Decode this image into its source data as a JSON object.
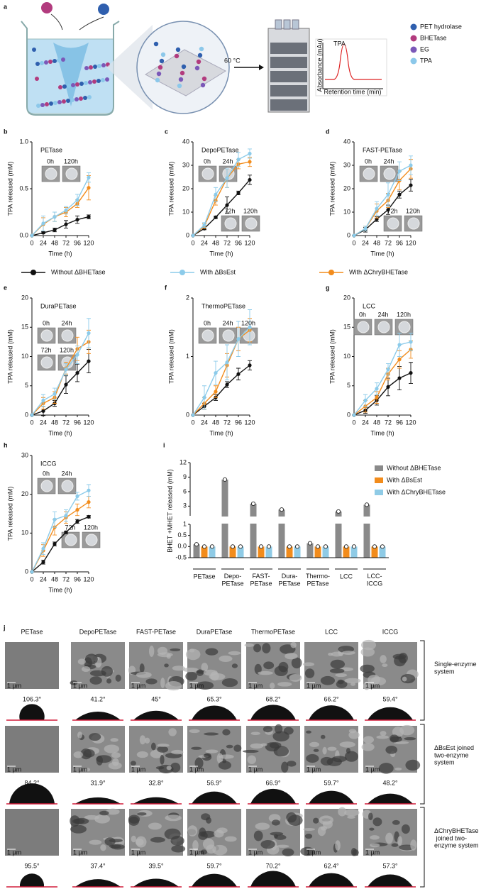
{
  "panel_a": {
    "label": "a",
    "temperature": "60 °C",
    "peak": "TPA",
    "y_axis": "Absorbance (mAu)",
    "x_axis": "Retention time (min)",
    "legend": [
      "PET hydrolase",
      "BHETase",
      "EG",
      "TPA"
    ],
    "legend_colors": [
      "#2f5fae",
      "#b23b7e",
      "#7b58b8",
      "#8cc8ea"
    ]
  },
  "legend": [
    {
      "name": "Without ΔBHETase",
      "color": "#111111"
    },
    {
      "name": "With ΔBsEst",
      "color": "#8ccbea"
    },
    {
      "name": "With ΔChryBHETase",
      "color": "#f28c1c"
    }
  ],
  "chart_data": [
    {
      "type": "line",
      "label": "b",
      "title": "PETase",
      "x_label": "Time (h)",
      "y_label": "TPA released (mM)",
      "x": [
        0,
        24,
        48,
        72,
        96,
        120
      ],
      "xlim": [
        0,
        120
      ],
      "xticks": [
        0,
        24,
        48,
        72,
        96,
        120
      ],
      "ylim": [
        0,
        1
      ],
      "yticks": [
        {
          "value": 0,
          "label": "0.0"
        },
        0.5,
        {
          "value": 1,
          "label": "1.0"
        }
      ],
      "insets": [
        [
          "0h",
          "120h"
        ]
      ],
      "series": [
        {
          "values": [
            0,
            0.03,
            0.06,
            0.12,
            0.17,
            0.2
          ],
          "errors": [
            null,
            0.01,
            0.02,
            0.04,
            0.04,
            0.02
          ]
        },
        {
          "values": [
            0,
            0.13,
            0.2,
            0.27,
            0.38,
            0.62
          ],
          "errors": [
            null,
            0.08,
            0.05,
            0.04,
            0.06,
            0.05
          ]
        },
        {
          "values": [
            0,
            0.12,
            0.2,
            0.25,
            0.34,
            0.51
          ],
          "errors": [
            null,
            0.07,
            0.05,
            0.05,
            0.04,
            0.13
          ]
        }
      ]
    },
    {
      "type": "line",
      "label": "c",
      "title": "DepoPETase",
      "x_label": "Time (h)",
      "y_label": "TPA released (mM)",
      "x": [
        0,
        24,
        48,
        72,
        96,
        120
      ],
      "xlim": [
        0,
        120
      ],
      "xticks": [
        0,
        24,
        48,
        72,
        96,
        120
      ],
      "ylim": [
        0,
        40
      ],
      "yticks": [
        0,
        10,
        20,
        30,
        40
      ],
      "insets": [
        [
          "0h",
          "24h"
        ],
        [
          "72h",
          "120h"
        ]
      ],
      "series": [
        {
          "values": [
            0,
            3,
            7.8,
            13,
            18.2,
            23.8
          ],
          "errors": [
            null,
            0.5,
            0.5,
            3.5,
            0.8,
            2
          ]
        },
        {
          "values": [
            0,
            4.5,
            17.5,
            24.5,
            32.5,
            35
          ],
          "errors": [
            null,
            1,
            3,
            4,
            3,
            2
          ]
        },
        {
          "values": [
            0,
            4,
            15,
            24.5,
            30.5,
            31.5
          ],
          "errors": [
            null,
            1,
            2,
            4,
            2,
            2
          ]
        }
      ]
    },
    {
      "type": "line",
      "label": "d",
      "title": "FAST-PETase",
      "x_label": "Time (h)",
      "y_label": "TPA released (mM)",
      "x": [
        0,
        24,
        48,
        72,
        96,
        120
      ],
      "xlim": [
        0,
        120
      ],
      "xticks": [
        0,
        24,
        48,
        72,
        96,
        120
      ],
      "ylim": [
        0,
        40
      ],
      "yticks": [
        0,
        10,
        20,
        30,
        40
      ],
      "insets": [
        [
          "0h",
          "24h"
        ],
        [
          "72h",
          "120h"
        ]
      ],
      "series": [
        {
          "values": [
            0,
            2.5,
            7,
            11,
            17.5,
            21.5
          ],
          "errors": [
            null,
            1,
            1,
            2,
            1.5,
            2.5
          ]
        },
        {
          "values": [
            0,
            3,
            11.5,
            17.5,
            27.5,
            30
          ],
          "errors": [
            null,
            1,
            3,
            5,
            4,
            4
          ]
        },
        {
          "values": [
            0,
            3,
            10.5,
            15,
            23.5,
            28.5
          ],
          "errors": [
            null,
            1,
            3,
            3,
            4,
            4
          ]
        }
      ]
    },
    {
      "type": "line",
      "label": "e",
      "title": "DuraPETase",
      "x_label": "Time (h)",
      "y_label": "TPA released (mM)",
      "x": [
        0,
        24,
        48,
        72,
        96,
        120
      ],
      "xlim": [
        0,
        120
      ],
      "xticks": [
        0,
        24,
        48,
        72,
        96,
        120
      ],
      "ylim": [
        0,
        20
      ],
      "yticks": [
        0,
        5,
        10,
        15,
        20
      ],
      "insets": [
        [
          "0h",
          "24h"
        ],
        [
          "72h",
          "120h"
        ]
      ],
      "series": [
        {
          "values": [
            0,
            0.7,
            2,
            5.2,
            7.2,
            9.2
          ],
          "errors": [
            null,
            0.8,
            0.5,
            1.5,
            1.5,
            2
          ]
        },
        {
          "values": [
            0,
            2.5,
            3.6,
            7.8,
            10.3,
            14
          ],
          "errors": [
            null,
            1,
            1,
            1,
            1.5,
            2.5
          ]
        },
        {
          "values": [
            0,
            2,
            3,
            8,
            11.3,
            12.5
          ],
          "errors": [
            null,
            1,
            1,
            1,
            2,
            2
          ]
        }
      ]
    },
    {
      "type": "line",
      "label": "f",
      "title": "ThermoPETase",
      "x_label": "Time (h)",
      "y_label": "TPA released (mM)",
      "x": [
        0,
        24,
        48,
        72,
        96,
        120
      ],
      "xlim": [
        0,
        120
      ],
      "xticks": [
        0,
        24,
        48,
        72,
        96,
        120
      ],
      "ylim": [
        0,
        2
      ],
      "yticks": [
        0,
        1,
        2
      ],
      "insets": [
        [
          "0h",
          "24h",
          "120h"
        ]
      ],
      "series": [
        {
          "values": [
            0,
            0.15,
            0.3,
            0.52,
            0.7,
            0.85
          ],
          "errors": [
            null,
            0.05,
            0.05,
            0.05,
            0.1,
            0.08
          ]
        },
        {
          "values": [
            0,
            0.3,
            0.72,
            0.9,
            1.3,
            1.5
          ],
          "errors": [
            null,
            0.2,
            0.2,
            0.3,
            0.3,
            0.3
          ]
        },
        {
          "values": [
            0,
            0.2,
            0.4,
            0.85,
            1.3,
            1.45
          ],
          "errors": [
            null,
            0.1,
            0.1,
            0.2,
            0.2,
            0.2
          ]
        }
      ]
    },
    {
      "type": "line",
      "label": "g",
      "title": "LCC",
      "x_label": "Time (h)",
      "y_label": "TPA released (mM)",
      "x": [
        0,
        24,
        48,
        72,
        96,
        120
      ],
      "xlim": [
        0,
        120
      ],
      "xticks": [
        0,
        24,
        48,
        72,
        96,
        120
      ],
      "ylim": [
        0,
        20
      ],
      "yticks": [
        0,
        5,
        10,
        15,
        20
      ],
      "insets": [
        [
          "0h",
          "24h",
          "120h"
        ]
      ],
      "series": [
        {
          "values": [
            0,
            0.8,
            2.5,
            4.8,
            6.3,
            7.2
          ],
          "errors": [
            null,
            0.5,
            0.8,
            1.5,
            2,
            1.8
          ]
        },
        {
          "values": [
            0,
            2.5,
            4.5,
            7.8,
            12,
            12.5
          ],
          "errors": [
            null,
            1,
            1,
            1,
            2,
            1.5
          ]
        },
        {
          "values": [
            0,
            1.5,
            3,
            7,
            9.5,
            11.2
          ],
          "errors": [
            null,
            1,
            1,
            1,
            1.5,
            1.5
          ]
        }
      ]
    },
    {
      "type": "line",
      "label": "h",
      "title": "ICCG",
      "x_label": "Time (h)",
      "y_label": "TPA released (mM)",
      "x": [
        0,
        24,
        48,
        72,
        96,
        120
      ],
      "xlim": [
        0,
        120
      ],
      "xticks": [
        0,
        24,
        48,
        72,
        96,
        120
      ],
      "ylim": [
        0,
        30
      ],
      "yticks": [
        0,
        10,
        20,
        30
      ],
      "insets": [
        [
          "0h",
          "24h"
        ],
        [
          "72h",
          "120h"
        ]
      ],
      "series": [
        {
          "values": [
            0,
            2.5,
            7.2,
            10.2,
            13,
            14.2
          ],
          "errors": [
            null,
            0.5,
            0.5,
            0.3,
            0.5,
            0.3
          ]
        },
        {
          "values": [
            0,
            6,
            13.5,
            14.5,
            19.5,
            21
          ],
          "errors": [
            null,
            1.5,
            2,
            1.5,
            1,
            1.5
          ]
        },
        {
          "values": [
            0,
            5.5,
            11.5,
            14,
            16,
            18
          ],
          "errors": [
            null,
            1.5,
            2,
            1.5,
            1.5,
            1.5
          ]
        }
      ]
    },
    {
      "type": "bar",
      "label": "i",
      "y_label": "BHET +MHET released (mM)",
      "categories": [
        "PETase",
        "Depo-\nPETase",
        "FAST-\nPETase",
        "Dura-\nPETase",
        "Thermo-\nPETase",
        "LCC",
        "LCC-\nICCG"
      ],
      "ylim": [
        -0.5,
        12
      ],
      "ybreak": 1,
      "yticks": [
        -0.5,
        {
          "value": 0,
          "label": "0.0"
        },
        0.5,
        1,
        3,
        6,
        9,
        12
      ],
      "series": [
        {
          "name": "Without ΔBHETase",
          "color": "#8a8a8a",
          "values": [
            0.1,
            8.5,
            3.5,
            2.3,
            0.15,
            1.9,
            3.3
          ]
        },
        {
          "name": "With ΔBsEst",
          "color": "#f28c1c",
          "values": [
            0,
            0,
            0,
            0,
            0,
            0,
            0
          ]
        },
        {
          "name": "With ΔChryBHETase",
          "color": "#8fcbe6",
          "values": [
            0,
            0,
            0,
            0,
            0,
            0,
            0
          ]
        }
      ]
    }
  ],
  "panel_j": {
    "label": "j",
    "scale_bar": "1 µm",
    "columns": [
      "PETase",
      "DepoPETase",
      "FAST-PETase",
      "DuraPETase",
      "ThermoPETase",
      "LCC",
      "ICCG"
    ],
    "rows": [
      {
        "label": "Single-enzyme\nsystem",
        "angles": [
          "106.3°",
          "41.2°",
          "45°",
          "65.3°",
          "68.2°",
          "66.2°",
          "59.4°"
        ]
      },
      {
        "label": "ΔBsEst joined\ntwo-enzyme\nsystem",
        "angles": [
          "84.2°",
          "31.9°",
          "32.8°",
          "56.9°",
          "66.9°",
          "59.7°",
          "48.2°"
        ]
      },
      {
        "label": "ΔChryBHETase\n joined two-\nenzyme system",
        "angles": [
          "95.5°",
          "37.4°",
          "39.5°",
          "59.7°",
          "70.2°",
          "62.4°",
          "57.3°"
        ]
      }
    ]
  }
}
